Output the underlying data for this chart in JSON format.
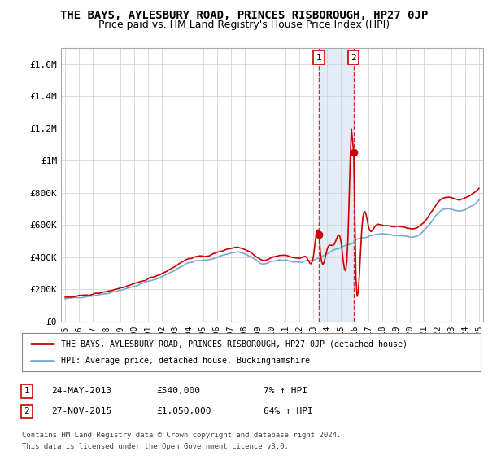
{
  "title": "THE BAYS, AYLESBURY ROAD, PRINCES RISBOROUGH, HP27 0JP",
  "subtitle": "Price paid vs. HM Land Registry's House Price Index (HPI)",
  "title_fontsize": 10,
  "subtitle_fontsize": 9,
  "background_color": "#ffffff",
  "grid_color": "#cccccc",
  "ylim": [
    0,
    1700000
  ],
  "xlim_start": 1994.7,
  "xlim_end": 2025.3,
  "yticks": [
    0,
    200000,
    400000,
    600000,
    800000,
    1000000,
    1200000,
    1400000,
    1600000
  ],
  "ytick_labels": [
    "£0",
    "£200K",
    "£400K",
    "£600K",
    "£800K",
    "£1M",
    "£1.2M",
    "£1.4M",
    "£1.6M"
  ],
  "xticks": [
    1995,
    1996,
    1997,
    1998,
    1999,
    2000,
    2001,
    2002,
    2003,
    2004,
    2005,
    2006,
    2007,
    2008,
    2009,
    2010,
    2011,
    2012,
    2013,
    2014,
    2015,
    2016,
    2017,
    2018,
    2019,
    2020,
    2021,
    2022,
    2023,
    2024,
    2025
  ],
  "red_line_color": "#cc0000",
  "blue_line_color": "#7aaad0",
  "point1_x": 2013.39,
  "point1_y": 540000,
  "point2_x": 2015.9,
  "point2_y": 1050000,
  "vline_color": "#cc0000",
  "shade_color": "#c5d8ee",
  "legend_red_label": "THE BAYS, AYLESBURY ROAD, PRINCES RISBOROUGH, HP27 0JP (detached house)",
  "legend_blue_label": "HPI: Average price, detached house, Buckinghamshire",
  "annotation1_label": "1",
  "annotation2_label": "2",
  "footer_text1": "Contains HM Land Registry data © Crown copyright and database right 2024.",
  "footer_text2": "This data is licensed under the Open Government Licence v3.0.",
  "table_row1": [
    "1",
    "24-MAY-2013",
    "£540,000",
    "7% ↑ HPI"
  ],
  "table_row2": [
    "2",
    "27-NOV-2015",
    "£1,050,000",
    "64% ↑ HPI"
  ]
}
